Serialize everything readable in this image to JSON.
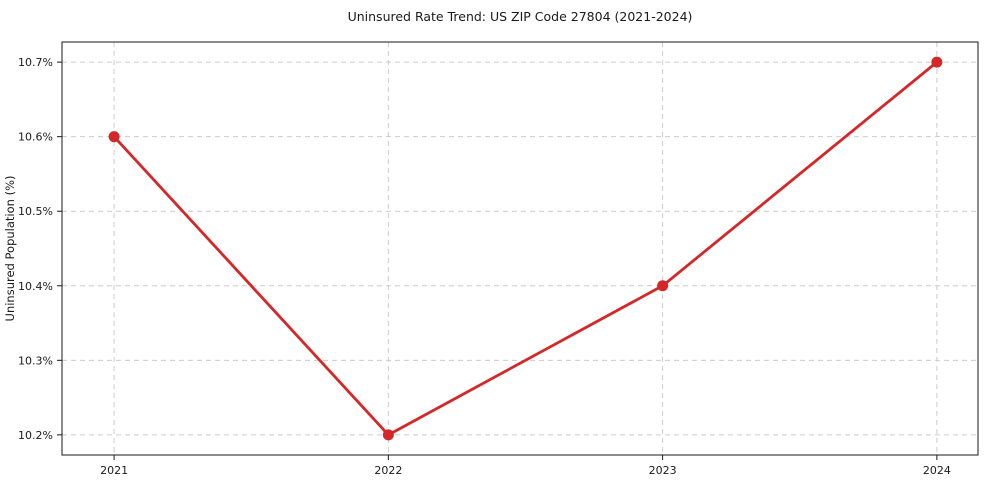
{
  "chart_data": {
    "type": "line",
    "title": "Uninsured Rate Trend: US ZIP Code 27804 (2021-2024)",
    "xlabel": "",
    "ylabel": "Uninsured Population (%)",
    "x": [
      2021,
      2022,
      2023,
      2024
    ],
    "values": [
      10.6,
      10.2,
      10.4,
      10.7
    ],
    "x_tick_labels": [
      "2021",
      "2022",
      "2023",
      "2024"
    ],
    "y_ticks": [
      10.2,
      10.3,
      10.4,
      10.5,
      10.6,
      10.7
    ],
    "y_tick_labels": [
      "10.2%",
      "10.3%",
      "10.4%",
      "10.5%",
      "10.6%",
      "10.7%"
    ],
    "xlim": [
      2020.81,
      2024.15
    ],
    "ylim": [
      10.173,
      10.727
    ],
    "grid": true,
    "grid_style": "dashed",
    "legend_position": "none",
    "line_color": "#d62728",
    "marker": "circle",
    "grid_color": "#cccccc",
    "axis_color": "#1a1a1a"
  }
}
